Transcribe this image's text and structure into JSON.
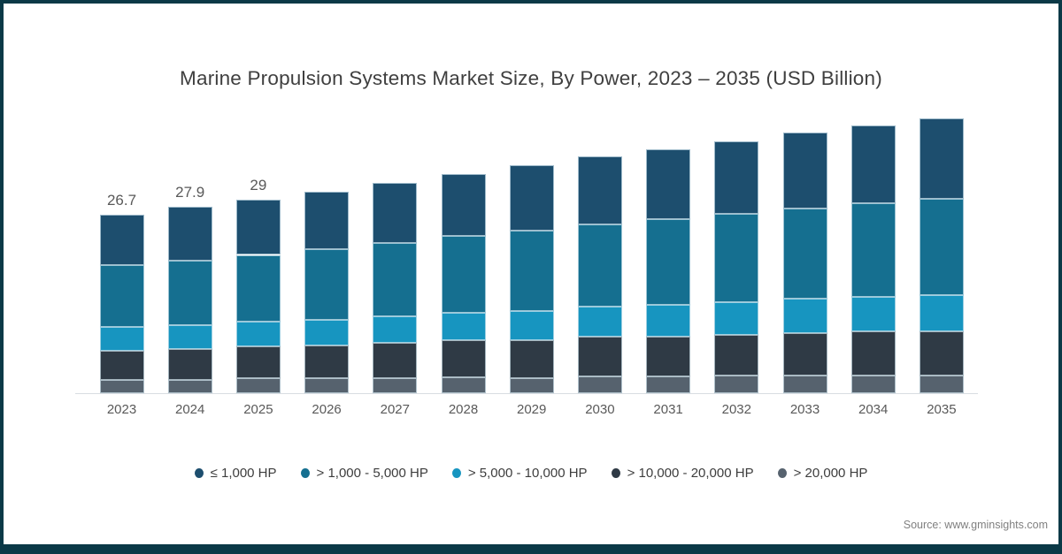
{
  "title": "Marine Propulsion Systems Market Size, By Power, 2023 – 2035 (USD Billion)",
  "source_note": "Source: www.gminsights.com",
  "colors": {
    "frame": "#0b3947",
    "title_text": "#3f3f3f",
    "label_text": "#595959",
    "source_text": "#808080",
    "axis_line": "#d8dde2"
  },
  "chart_data": {
    "type": "bar",
    "stacked": true,
    "title": "Marine Propulsion Systems Market Size, By Power, 2023 – 2035 (USD Billion)",
    "xlabel": "",
    "ylabel": "",
    "unit": "USD Billion",
    "grid": false,
    "legend_position": "bottom",
    "categories": [
      "2023",
      "2024",
      "2025",
      "2026",
      "2027",
      "2028",
      "2029",
      "2030",
      "2031",
      "2032",
      "2033",
      "2034",
      "2035"
    ],
    "series": [
      {
        "name": "≤ 1,000 HP",
        "color": "#1d4e6e",
        "values": [
          7.5,
          8.1,
          8.3,
          8.6,
          9.0,
          9.3,
          9.8,
          10.1,
          10.5,
          10.9,
          11.3,
          11.7,
          12.1
        ]
      },
      {
        "name": "> 1,000 - 5,000 HP",
        "color": "#156f90",
        "values": [
          9.3,
          9.6,
          10.0,
          10.6,
          11.0,
          11.5,
          12.0,
          12.4,
          12.8,
          13.2,
          13.6,
          14.0,
          14.4
        ]
      },
      {
        "name": "> 5,000 - 10,000 HP",
        "color": "#1795c0",
        "values": [
          3.6,
          3.6,
          3.7,
          3.8,
          4.0,
          4.1,
          4.3,
          4.5,
          4.7,
          4.9,
          5.1,
          5.2,
          5.5
        ]
      },
      {
        "name": "> 10,000 - 20,000 HP",
        "color": "#2f3a45",
        "values": [
          4.3,
          4.6,
          4.8,
          4.9,
          5.2,
          5.5,
          5.7,
          5.9,
          6.0,
          6.1,
          6.3,
          6.5,
          6.6
        ]
      },
      {
        "name": "> 20,000 HP",
        "color": "#56626e",
        "values": [
          2.0,
          2.0,
          2.2,
          2.3,
          2.3,
          2.4,
          2.3,
          2.5,
          2.5,
          2.6,
          2.7,
          2.7,
          2.6
        ]
      }
    ],
    "stack_order_bottom_to_top": [
      "> 20,000 HP",
      "> 10,000 - 20,000 HP",
      "> 5,000 - 10,000 HP",
      "> 1,000 - 5,000 HP",
      "≤ 1,000 HP"
    ],
    "bar_total_labels": [
      "26.7",
      "27.9",
      "29",
      "",
      "",
      "",
      "",
      "",
      "",
      "",
      "",
      "",
      ""
    ],
    "totals": [
      26.7,
      27.9,
      29.0,
      30.2,
      31.5,
      32.8,
      34.1,
      35.4,
      36.5,
      37.7,
      39.0,
      40.1,
      41.2
    ]
  }
}
